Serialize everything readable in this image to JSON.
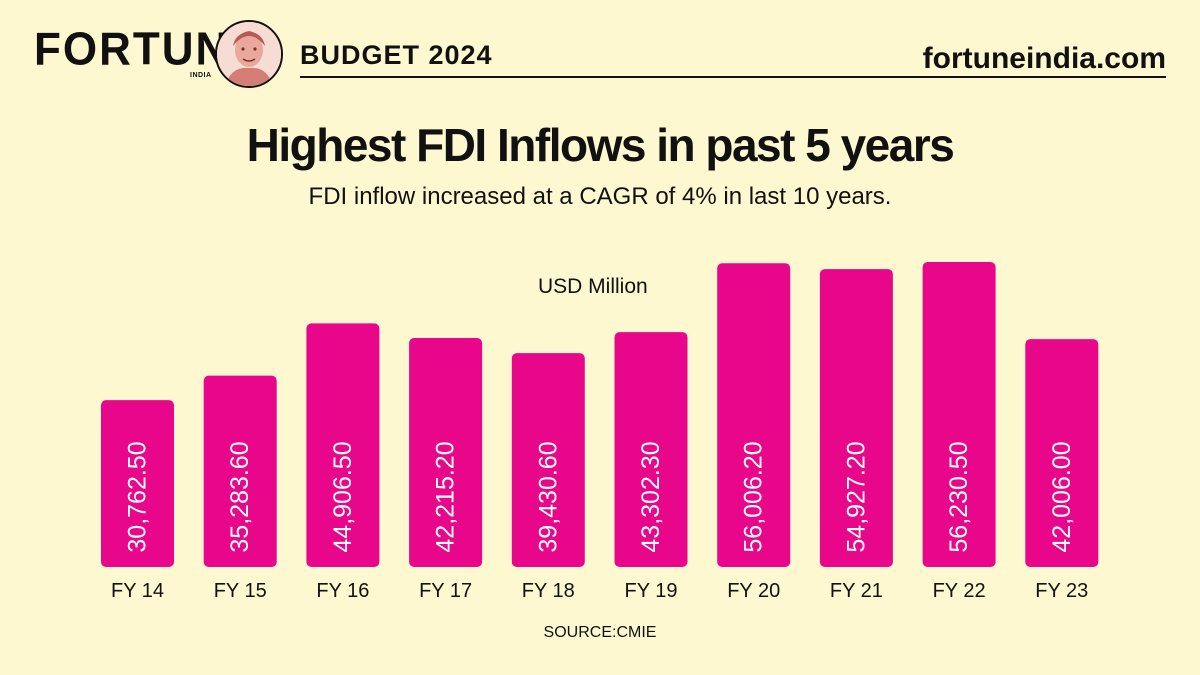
{
  "header": {
    "logo": "FORTUNE",
    "logo_sub": "INDIA",
    "edition": "BUDGET 2024",
    "site": "fortuneindia.com"
  },
  "title": "Highest FDI Inflows in past 5 years",
  "subtitle": "FDI inflow increased at a CAGR of 4% in last 10 years.",
  "footer": {
    "source": "SOURCE:CMIE"
  },
  "colors": {
    "bar": "#e8078a",
    "background": "#fdf8d0",
    "text": "#111111"
  },
  "chart_data": {
    "type": "bar",
    "title": "Highest FDI Inflows in past 5 years",
    "ylabel": "USD Million",
    "xlabel": "",
    "categories": [
      "FY 14",
      "FY 15",
      "FY 16",
      "FY 17",
      "FY 18",
      "FY 19",
      "FY 20",
      "FY 21",
      "FY 22",
      "FY 23"
    ],
    "values": [
      30762.5,
      35283.6,
      44906.5,
      42215.2,
      39430.6,
      43302.3,
      56006.2,
      54927.2,
      56230.5,
      42006.0
    ],
    "value_labels": [
      "30,762.50",
      "35,283.60",
      "44,906.50",
      "42,215.20",
      "39,430.60",
      "43,302.30",
      "56,006.20",
      "54,927.20",
      "56,230.50",
      "42,006.00"
    ],
    "ylim": [
      0,
      56230.5
    ],
    "grid": false,
    "legend": "none"
  }
}
